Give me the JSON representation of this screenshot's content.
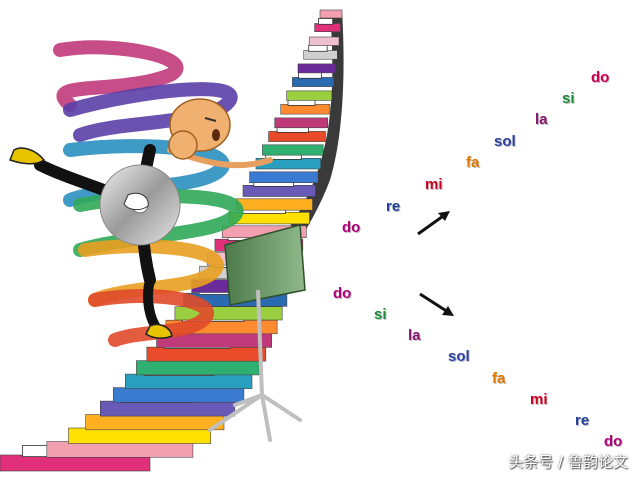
{
  "ascending_scale": [
    {
      "syllable": "do",
      "color": "#b0007a"
    },
    {
      "syllable": "re",
      "color": "#1f3f99"
    },
    {
      "syllable": "mi",
      "color": "#cc0022"
    },
    {
      "syllable": "fa",
      "color": "#e07800"
    },
    {
      "syllable": "sol",
      "color": "#2b3fa0"
    },
    {
      "syllable": "la",
      "color": "#8a1470"
    },
    {
      "syllable": "si",
      "color": "#1a8a3a"
    },
    {
      "syllable": "do",
      "color": "#cc0055"
    }
  ],
  "descending_scale": [
    {
      "syllable": "do",
      "color": "#b0007a"
    },
    {
      "syllable": "si",
      "color": "#1a8a3a"
    },
    {
      "syllable": "la",
      "color": "#8a1470"
    },
    {
      "syllable": "sol",
      "color": "#2b3fa0"
    },
    {
      "syllable": "fa",
      "color": "#e07800"
    },
    {
      "syllable": "mi",
      "color": "#cc0022"
    },
    {
      "syllable": "re",
      "color": "#1f3f99"
    },
    {
      "syllable": "do",
      "color": "#b0007a"
    }
  ],
  "arrows": {
    "up_icon": "arrow-up-right-icon",
    "down_icon": "arrow-down-right-icon"
  },
  "watermark": "头条号 / 鲁韵论文"
}
